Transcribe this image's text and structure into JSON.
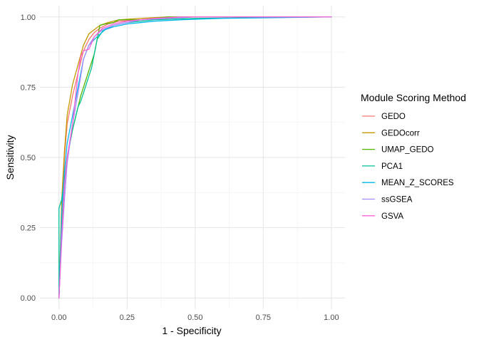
{
  "chart_data": {
    "type": "line",
    "title": "",
    "xlabel": "1 - Specificity",
    "ylabel": "Sensitivity",
    "xlim": [
      -0.07,
      1.05
    ],
    "ylim": [
      -0.04,
      1.04
    ],
    "xticks": [
      0.0,
      0.25,
      0.5,
      0.75,
      1.0
    ],
    "xtick_labels": [
      "0.00",
      "0.25",
      "0.50",
      "0.75",
      "1.00"
    ],
    "yticks": [
      0.0,
      0.25,
      0.5,
      0.75,
      1.0
    ],
    "ytick_labels": [
      "0.00",
      "0.25",
      "0.50",
      "0.75",
      "1.00"
    ],
    "grid": true,
    "legend": {
      "title": "Module Scoring Method",
      "position": "right"
    },
    "series": [
      {
        "name": "GEDO",
        "color": "#F8766D",
        "x": [
          0,
          0.01,
          0.02,
          0.03,
          0.05,
          0.07,
          0.09,
          0.11,
          0.13,
          0.15,
          0.18,
          0.22,
          0.3,
          0.4,
          0.5,
          1.0
        ],
        "y": [
          0,
          0.3,
          0.5,
          0.62,
          0.72,
          0.8,
          0.88,
          0.92,
          0.945,
          0.96,
          0.975,
          0.985,
          0.99,
          0.997,
          1.0,
          1.0
        ]
      },
      {
        "name": "GEDOcorr",
        "color": "#C49A00",
        "x": [
          0,
          0.01,
          0.02,
          0.03,
          0.05,
          0.07,
          0.09,
          0.11,
          0.13,
          0.15,
          0.18,
          0.22,
          0.3,
          0.4,
          1.0
        ],
        "y": [
          0,
          0.35,
          0.52,
          0.65,
          0.76,
          0.83,
          0.9,
          0.94,
          0.955,
          0.97,
          0.98,
          0.99,
          0.995,
          1.0,
          1.0
        ]
      },
      {
        "name": "UMAP_GEDO",
        "color": "#53B400",
        "x": [
          0,
          0.01,
          0.02,
          0.03,
          0.05,
          0.07,
          0.08,
          0.1,
          0.12,
          0.13,
          0.15,
          0.17,
          0.2,
          0.22,
          0.3,
          0.4,
          1.0
        ],
        "y": [
          0,
          0.25,
          0.4,
          0.5,
          0.6,
          0.68,
          0.72,
          0.78,
          0.84,
          0.87,
          0.97,
          0.975,
          0.98,
          0.99,
          0.99,
          1.0,
          1.0
        ]
      },
      {
        "name": "PCA1",
        "color": "#00C094",
        "x": [
          0,
          0.0,
          0.01,
          0.02,
          0.03,
          0.05,
          0.07,
          0.08,
          0.1,
          0.12,
          0.14,
          0.16,
          0.2,
          0.25,
          0.35,
          0.5,
          1.0
        ],
        "y": [
          0,
          0.32,
          0.35,
          0.42,
          0.5,
          0.6,
          0.68,
          0.7,
          0.76,
          0.82,
          0.92,
          0.95,
          0.97,
          0.98,
          0.99,
          0.995,
          1.0
        ]
      },
      {
        "name": "MEAN_Z_SCORES",
        "color": "#00B6EB",
        "x": [
          0,
          0.01,
          0.02,
          0.03,
          0.05,
          0.07,
          0.09,
          0.11,
          0.14,
          0.17,
          0.2,
          0.25,
          0.3,
          0.35,
          0.45,
          0.6,
          1.0
        ],
        "y": [
          0,
          0.3,
          0.45,
          0.55,
          0.65,
          0.75,
          0.85,
          0.9,
          0.93,
          0.955,
          0.965,
          0.975,
          0.98,
          0.985,
          0.99,
          0.995,
          1.0
        ]
      },
      {
        "name": "ssGSEA",
        "color": "#A58AFF",
        "x": [
          0,
          0.01,
          0.02,
          0.03,
          0.05,
          0.07,
          0.09,
          0.11,
          0.13,
          0.16,
          0.2,
          0.25,
          0.3,
          0.4,
          0.5,
          1.0
        ],
        "y": [
          0,
          0.2,
          0.35,
          0.48,
          0.62,
          0.73,
          0.85,
          0.9,
          0.93,
          0.955,
          0.97,
          0.98,
          0.99,
          0.995,
          1.0,
          1.0
        ]
      },
      {
        "name": "GSVA",
        "color": "#FB61D7",
        "x": [
          0,
          0.01,
          0.02,
          0.03,
          0.05,
          0.07,
          0.08,
          0.09,
          0.11,
          0.13,
          0.16,
          0.2,
          0.25,
          0.35,
          0.45,
          1.0
        ],
        "y": [
          0,
          0.22,
          0.4,
          0.5,
          0.62,
          0.8,
          0.86,
          0.88,
          0.885,
          0.93,
          0.96,
          0.975,
          0.985,
          0.995,
          1.0,
          1.0
        ]
      }
    ]
  }
}
